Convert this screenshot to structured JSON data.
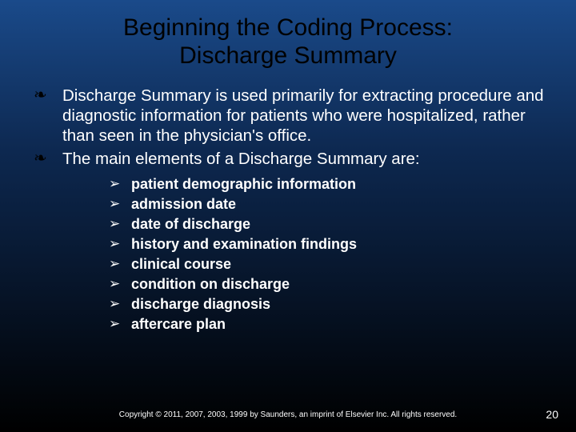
{
  "title_line1": "Beginning the Coding Process:",
  "title_line2": "Discharge Summary",
  "main_bullets": [
    "Discharge Summary is used primarily for extracting procedure and diagnostic information for patients who were hospitalized, rather than seen in the physician's office.",
    "The main elements of a Discharge Summary are:"
  ],
  "sub_bullets": [
    " patient demographic information",
    "admission date",
    "date of discharge",
    "history and examination findings",
    "clinical course",
    "condition on discharge",
    "discharge diagnosis",
    "aftercare plan"
  ],
  "copyright": "Copyright © 2011, 2007, 2003, 1999 by Saunders, an imprint of Elsevier Inc. All rights reserved.",
  "page_number": "20",
  "main_marker": "❧",
  "sub_marker": "➢",
  "colors": {
    "title_color": "#000000",
    "text_color": "#ffffff",
    "bg_top": "#1a4a8a",
    "bg_mid": "#0d2850",
    "bg_bottom": "#000000"
  }
}
